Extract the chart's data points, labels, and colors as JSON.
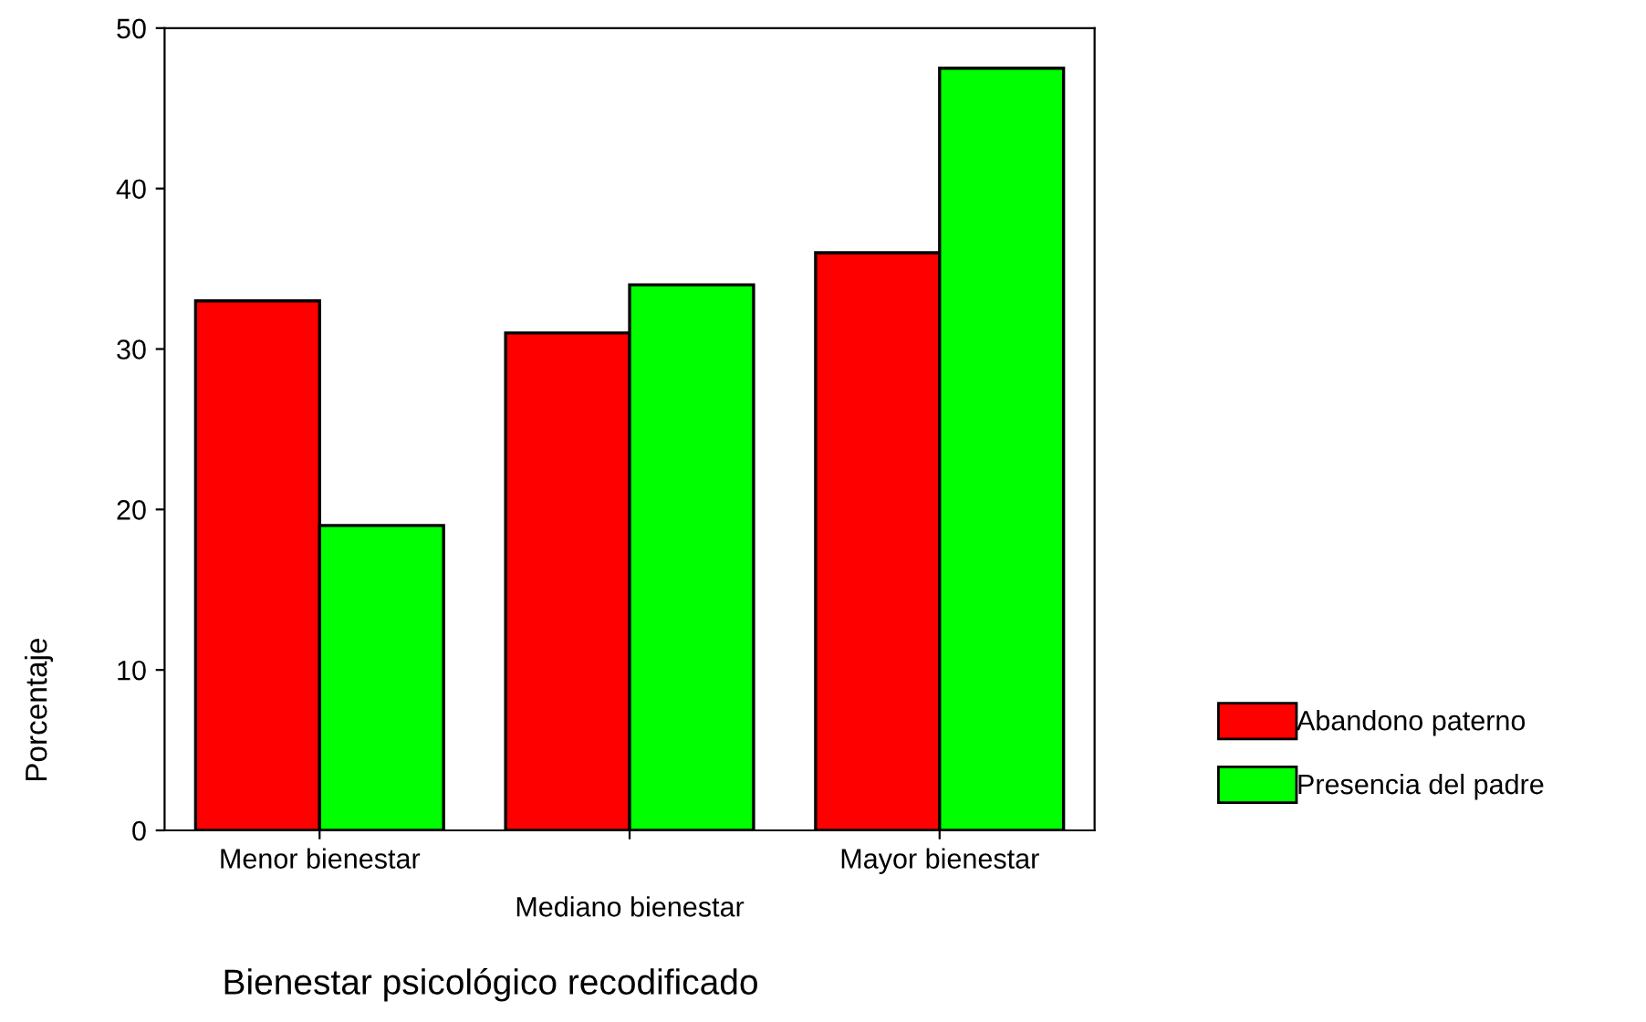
{
  "chart_data": {
    "type": "bar",
    "xlabel": "Bienestar psicológico recodificado",
    "ylabel": "Porcentaje",
    "categories": [
      "Menor bienestar",
      "Mediano bienestar",
      "Mayor bienestar"
    ],
    "series": [
      {
        "name": "Abandono paterno",
        "color": "#ff0000",
        "values": [
          33,
          31,
          36
        ]
      },
      {
        "name": "Presencia del padre",
        "color": "#00ff00",
        "values": [
          19,
          34,
          47.5
        ]
      }
    ],
    "ylim": [
      0,
      50
    ],
    "yticks": [
      0,
      10,
      20,
      30,
      40,
      50
    ],
    "grid": false,
    "legend": "bottom right"
  }
}
